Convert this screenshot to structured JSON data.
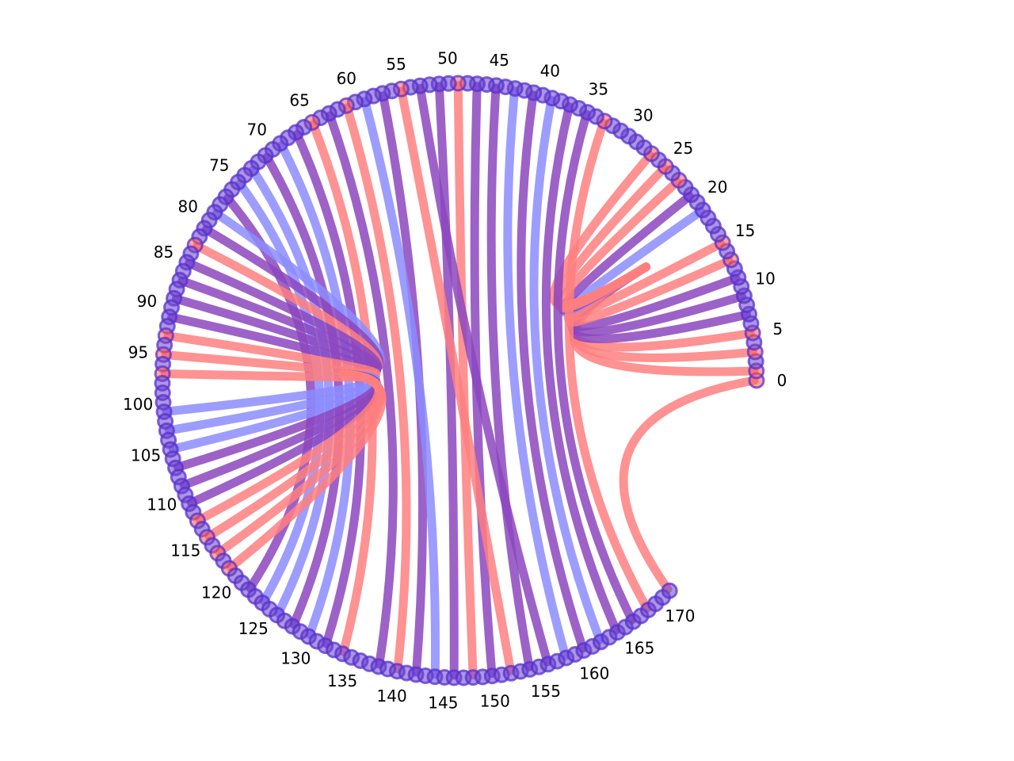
{
  "chart_data": {
    "type": "chord",
    "title": "",
    "node_count": 172,
    "node_index_range": [
      0,
      171
    ],
    "arc_extent_degrees": [
      0,
      315
    ],
    "tick_labels": [
      "0",
      "5",
      "10",
      "15",
      "20",
      "25",
      "30",
      "35",
      "40",
      "45",
      "50",
      "55",
      "60",
      "65",
      "70",
      "75",
      "80",
      "85",
      "90",
      "95",
      "100",
      "105",
      "110",
      "115",
      "120",
      "125",
      "130",
      "135",
      "140",
      "145",
      "150",
      "155",
      "160",
      "165",
      "170"
    ],
    "tick_step": 5,
    "colors": {
      "red": "#ff7f7f",
      "blue": "#8c8cff",
      "purple": "#8c46be",
      "node_fill": "#6a3fd0",
      "node_stroke": "#5533cc",
      "node_red": "#ff5a5a"
    },
    "hubs": [
      {
        "name": "hub-a",
        "target_ratio": [
          0.735,
          0.622
        ]
      },
      {
        "name": "hub-b",
        "target_ratio": [
          0.395,
          0.493
        ]
      }
    ],
    "links": [
      {
        "source": 0,
        "target": 171,
        "hub": "",
        "color": "red"
      },
      {
        "source": 1,
        "target": 17,
        "hub": "hub-a",
        "color": "red"
      },
      {
        "source": 3,
        "target": 17,
        "hub": "hub-a",
        "color": "red"
      },
      {
        "source": 5,
        "target": 17,
        "hub": "hub-a",
        "color": "red"
      },
      {
        "source": 7,
        "target": 17,
        "hub": "hub-a",
        "color": "purple"
      },
      {
        "source": 9,
        "target": 17,
        "hub": "hub-a",
        "color": "purple"
      },
      {
        "source": 11,
        "target": 17,
        "hub": "hub-a",
        "color": "purple"
      },
      {
        "source": 13,
        "target": 17,
        "hub": "hub-a",
        "color": "red"
      },
      {
        "source": 15,
        "target": 17,
        "hub": "hub-a",
        "color": "red"
      },
      {
        "source": 19,
        "target": 17,
        "hub": "hub-a",
        "color": "blue"
      },
      {
        "source": 21,
        "target": 17,
        "hub": "hub-a",
        "color": "purple"
      },
      {
        "source": 23,
        "target": 17,
        "hub": "hub-a",
        "color": "red"
      },
      {
        "source": 25,
        "target": 17,
        "hub": "hub-a",
        "color": "red"
      },
      {
        "source": 27,
        "target": 17,
        "hub": "hub-a",
        "color": "red"
      },
      {
        "source": 33,
        "target": 168,
        "hub": "",
        "color": "red"
      },
      {
        "source": 35,
        "target": 166,
        "hub": "",
        "color": "purple"
      },
      {
        "source": 37,
        "target": 164,
        "hub": "",
        "color": "purple"
      },
      {
        "source": 39,
        "target": 162,
        "hub": "",
        "color": "blue"
      },
      {
        "source": 41,
        "target": 160,
        "hub": "",
        "color": "purple"
      },
      {
        "source": 43,
        "target": 158,
        "hub": "",
        "color": "blue"
      },
      {
        "source": 45,
        "target": 154,
        "hub": "",
        "color": "purple"
      },
      {
        "source": 47,
        "target": 150,
        "hub": "",
        "color": "purple"
      },
      {
        "source": 49,
        "target": 148,
        "hub": "",
        "color": "red"
      },
      {
        "source": 51,
        "target": 146,
        "hub": "",
        "color": "purple"
      },
      {
        "source": 53,
        "target": 156,
        "hub": "",
        "color": "purple"
      },
      {
        "source": 55,
        "target": 152,
        "hub": "",
        "color": "red"
      },
      {
        "source": 57,
        "target": 142,
        "hub": "",
        "color": "purple"
      },
      {
        "source": 59,
        "target": 144,
        "hub": "",
        "color": "blue"
      },
      {
        "source": 61,
        "target": 140,
        "hub": "",
        "color": "red"
      },
      {
        "source": 63,
        "target": 138,
        "hub": "",
        "color": "purple"
      },
      {
        "source": 65,
        "target": 134,
        "hub": "",
        "color": "red"
      },
      {
        "source": 67,
        "target": 132,
        "hub": "",
        "color": "purple"
      },
      {
        "source": 69,
        "target": 130,
        "hub": "",
        "color": "blue"
      },
      {
        "source": 71,
        "target": 128,
        "hub": "",
        "color": "purple"
      },
      {
        "source": 73,
        "target": 126,
        "hub": "",
        "color": "blue"
      },
      {
        "source": 75,
        "target": 124,
        "hub": "",
        "color": "blue"
      },
      {
        "source": 77,
        "target": 122,
        "hub": "",
        "color": "purple"
      },
      {
        "source": 79,
        "target": 96,
        "hub": "hub-b",
        "color": "blue"
      },
      {
        "source": 81,
        "target": 96,
        "hub": "hub-b",
        "color": "purple"
      },
      {
        "source": 83,
        "target": 96,
        "hub": "hub-b",
        "color": "red"
      },
      {
        "source": 85,
        "target": 96,
        "hub": "hub-b",
        "color": "purple"
      },
      {
        "source": 87,
        "target": 96,
        "hub": "hub-b",
        "color": "purple"
      },
      {
        "source": 89,
        "target": 96,
        "hub": "hub-b",
        "color": "purple"
      },
      {
        "source": 91,
        "target": 96,
        "hub": "hub-b",
        "color": "purple"
      },
      {
        "source": 93,
        "target": 96,
        "hub": "hub-b",
        "color": "red"
      },
      {
        "source": 95,
        "target": 96,
        "hub": "hub-b",
        "color": "red"
      },
      {
        "source": 97,
        "target": 96,
        "hub": "hub-b",
        "color": "red"
      },
      {
        "source": 101,
        "target": 96,
        "hub": "hub-b",
        "color": "blue"
      },
      {
        "source": 103,
        "target": 96,
        "hub": "hub-b",
        "color": "blue"
      },
      {
        "source": 105,
        "target": 96,
        "hub": "hub-b",
        "color": "blue"
      },
      {
        "source": 107,
        "target": 96,
        "hub": "hub-b",
        "color": "purple"
      },
      {
        "source": 109,
        "target": 96,
        "hub": "hub-b",
        "color": "purple"
      },
      {
        "source": 111,
        "target": 96,
        "hub": "hub-b",
        "color": "purple"
      },
      {
        "source": 113,
        "target": 96,
        "hub": "hub-b",
        "color": "red"
      },
      {
        "source": 115,
        "target": 96,
        "hub": "hub-b",
        "color": "red"
      },
      {
        "source": 117,
        "target": 96,
        "hub": "hub-b",
        "color": "red"
      },
      {
        "source": 119,
        "target": 96,
        "hub": "hub-b",
        "color": "red"
      }
    ]
  }
}
